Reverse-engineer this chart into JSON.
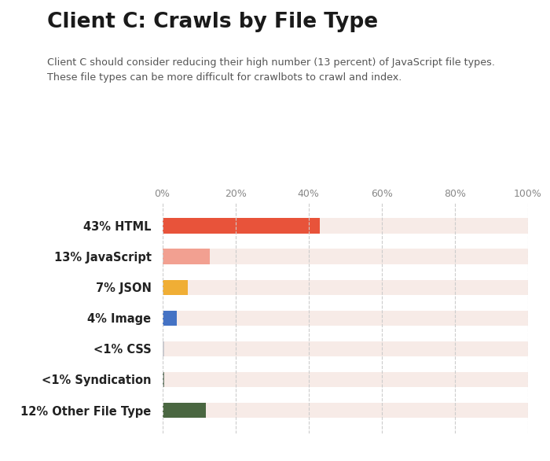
{
  "title": "Client C: Crawls by File Type",
  "subtitle": "Client C should consider reducing their high number (13 percent) of JavaScript file types.\nThese file types can be more difficult for crawlbots to crawl and index.",
  "categories": [
    "43% HTML",
    "13% JavaScript",
    "7% JSON",
    "4% Image",
    "<1% CSS",
    "<1% Syndication",
    "12% Other File Type"
  ],
  "values": [
    43,
    13,
    7,
    4,
    0.5,
    0.5,
    12
  ],
  "bar_colors": [
    "#e8533a",
    "#f2a091",
    "#f0ae35",
    "#4472c4",
    "#c8c8d0",
    "#6b7d6a",
    "#4a6741"
  ],
  "background_full_bar": "#f7ebe7",
  "xlim": [
    0,
    100
  ],
  "xticks": [
    0,
    20,
    40,
    60,
    80,
    100
  ],
  "xticklabels": [
    "0%",
    "20%",
    "40%",
    "60%",
    "80%",
    "100%"
  ],
  "grid_color": "#cccccc",
  "fig_bg": "#ffffff",
  "neilpatel_bg": "#e8533a",
  "neilpatel_text": "#ffffff"
}
